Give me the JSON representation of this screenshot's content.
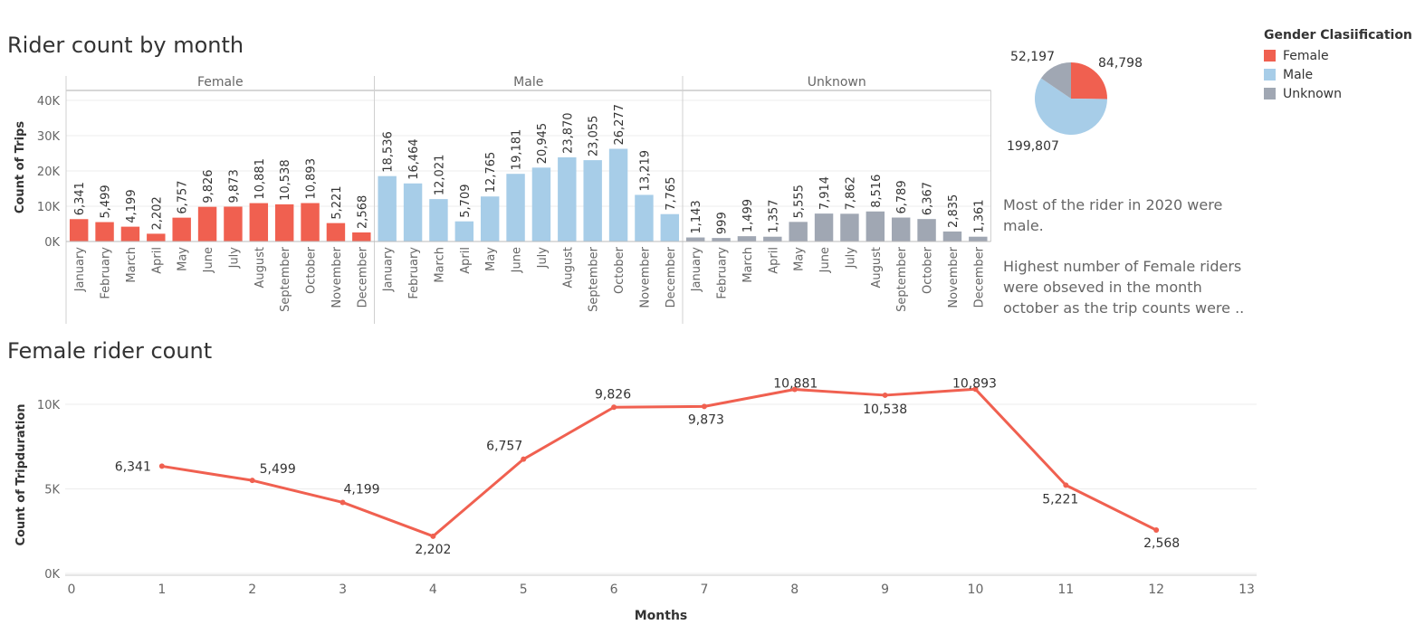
{
  "chart_data": [
    {
      "type": "bar",
      "title": "Rider count by month",
      "ylabel": "Count of Trips",
      "ylim": [
        0,
        40000
      ],
      "yticks": [
        0,
        10000,
        20000,
        30000,
        40000
      ],
      "ytick_labels": [
        "0K",
        "10K",
        "20K",
        "30K",
        "40K"
      ],
      "panel_order": [
        "Female",
        "Male",
        "Unknown"
      ],
      "categories": [
        "January",
        "February",
        "March",
        "April",
        "May",
        "June",
        "July",
        "August",
        "September",
        "October",
        "November",
        "December"
      ],
      "series": [
        {
          "name": "Female",
          "color": "#f06050",
          "values": [
            6341,
            5499,
            4199,
            2202,
            6757,
            9826,
            9873,
            10881,
            10538,
            10893,
            5221,
            2568
          ],
          "labels": [
            "6,341",
            "5,499",
            "4,199",
            "2,202",
            "6,757",
            "9,826",
            "9,873",
            "10,881",
            "10,538",
            "10,893",
            "5,221",
            "2,568"
          ]
        },
        {
          "name": "Male",
          "color": "#a7cde8",
          "values": [
            18536,
            16464,
            12021,
            5709,
            12765,
            19181,
            20945,
            23870,
            23055,
            26277,
            13219,
            7765
          ],
          "labels": [
            "18,536",
            "16,464",
            "12,021",
            "5,709",
            "12,765",
            "19,181",
            "20,945",
            "23,870",
            "23,055",
            "26,277",
            "13,219",
            "7,765"
          ]
        },
        {
          "name": "Unknown",
          "color": "#a0a7b3",
          "values": [
            1143,
            999,
            1499,
            1357,
            5555,
            7914,
            7862,
            8516,
            6789,
            6367,
            2835,
            1361
          ],
          "labels": [
            "1,143",
            "999",
            "1,499",
            "1,357",
            "5,555",
            "7,914",
            "7,862",
            "8,516",
            "6,789",
            "6,367",
            "2,835",
            "1,361"
          ]
        }
      ],
      "grid": true,
      "legend": "right"
    },
    {
      "type": "pie",
      "slices": [
        {
          "name": "Female",
          "value": 84798,
          "label": "84,798",
          "color": "#f06050"
        },
        {
          "name": "Male",
          "value": 199807,
          "label": "199,807",
          "color": "#a7cde8"
        },
        {
          "name": "Unknown",
          "value": 52197,
          "label": "52,197",
          "color": "#a0a7b3"
        }
      ]
    },
    {
      "type": "line",
      "title": "Female rider count",
      "xlabel": "Months",
      "ylabel": "Count of Tripduration",
      "x": [
        1,
        2,
        3,
        4,
        5,
        6,
        7,
        8,
        9,
        10,
        11,
        12
      ],
      "xlim": [
        0,
        13
      ],
      "xticks": [
        "0",
        "1",
        "2",
        "3",
        "4",
        "5",
        "6",
        "7",
        "8",
        "9",
        "10",
        "11",
        "12",
        "13"
      ],
      "ylim": [
        0,
        10000
      ],
      "yticks": [
        0,
        5000,
        10000
      ],
      "ytick_labels": [
        "0K",
        "5K",
        "10K"
      ],
      "series": [
        {
          "name": "Female",
          "color": "#f06050",
          "values": [
            6341,
            5499,
            4199,
            2202,
            6757,
            9826,
            9873,
            10881,
            10538,
            10893,
            5221,
            2568
          ],
          "labels": [
            "6,341",
            "5,499",
            "4,199",
            "2,202",
            "6,757",
            "9,826",
            "9,873",
            "10,881",
            "10,538",
            "10,893",
            "5,221",
            "2,568"
          ]
        }
      ],
      "grid": true
    }
  ],
  "legend": {
    "title": "Gender Clasiification",
    "items": [
      {
        "label": "Female",
        "color": "#f06050"
      },
      {
        "label": "Male",
        "color": "#a7cde8"
      },
      {
        "label": "Unknown",
        "color": "#a0a7b3"
      }
    ]
  },
  "notes": {
    "note1_line1": "Most of the rider in 2020 were",
    "note1_line2": "male.",
    "note2_line1": "Highest number of Female riders",
    "note2_line2": "were obseved in the month",
    "note2_line3": "october as the trip counts were .."
  }
}
